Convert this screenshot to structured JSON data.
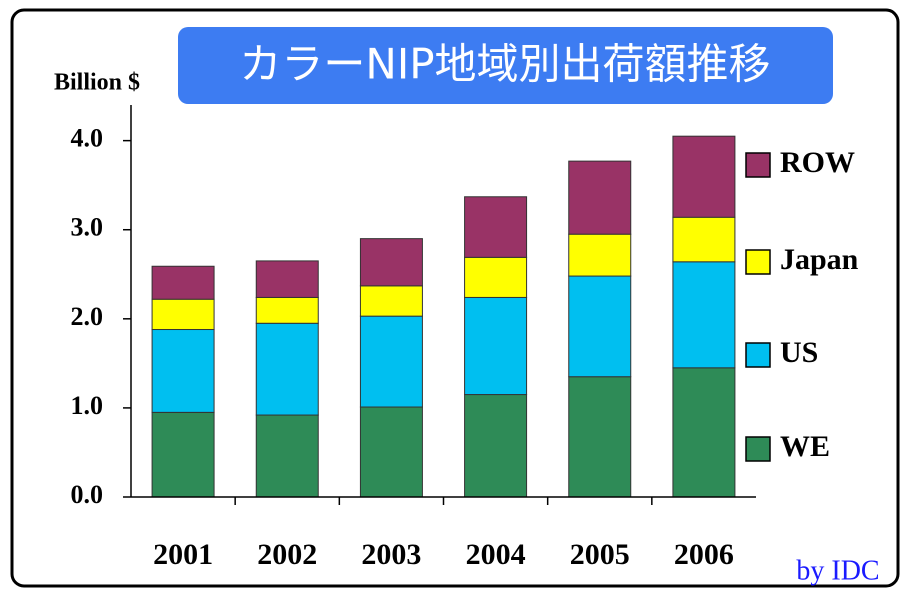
{
  "chart_data": {
    "type": "stacked_bar",
    "title": "カラーNIP地域別出荷額推移",
    "y_axis_label": "Billion $",
    "source": "by IDC",
    "categories": [
      "2001",
      "2002",
      "2003",
      "2004",
      "2005",
      "2006"
    ],
    "series": [
      {
        "name": "WE",
        "color": "#2e8b57",
        "values": [
          0.95,
          0.92,
          1.01,
          1.15,
          1.35,
          1.45
        ]
      },
      {
        "name": "US",
        "color": "#00bff0",
        "values": [
          0.93,
          1.03,
          1.02,
          1.09,
          1.13,
          1.19
        ]
      },
      {
        "name": "Japan",
        "color": "#ffff00",
        "values": [
          0.34,
          0.29,
          0.34,
          0.45,
          0.47,
          0.5
        ]
      },
      {
        "name": "ROW",
        "color": "#993366",
        "values": [
          0.37,
          0.41,
          0.53,
          0.68,
          0.82,
          0.91
        ]
      }
    ],
    "ylim": [
      0,
      4.4
    ],
    "yticks": [
      {
        "value": 0,
        "label": "0.0"
      },
      {
        "value": 1,
        "label": "1.0"
      },
      {
        "value": 2,
        "label": "2.0"
      },
      {
        "value": 3,
        "label": "3.0"
      },
      {
        "value": 4,
        "label": "4.0"
      }
    ],
    "legend": "right"
  }
}
